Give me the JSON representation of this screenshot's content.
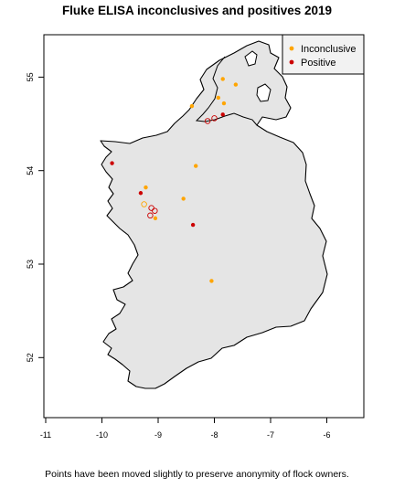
{
  "title": "Fluke ELISA inconclusives and positives 2019",
  "caption": "Points have been moved slightly to preserve anonymity of flock owners.",
  "map": {
    "land_color": "#e5e5e5",
    "border_color": "#000000",
    "x_ticks": [
      "-11",
      "-10",
      "-9",
      "-8",
      "-7",
      "-6"
    ],
    "y_ticks": [
      "52",
      "53",
      "54",
      "55"
    ]
  },
  "legend": {
    "position": "top-right",
    "items": [
      {
        "label": "Inconclusive",
        "color": "#ffa500"
      },
      {
        "label": "Positive",
        "color": "#cc0000"
      }
    ]
  },
  "chart_data": {
    "type": "scatter",
    "title": "Fluke ELISA inconclusives and positives 2019",
    "xlabel": "",
    "ylabel": "",
    "xlim": [
      -11.0,
      -5.5
    ],
    "ylim": [
      51.3,
      55.45
    ],
    "x_ticks": [
      -11,
      -10,
      -9,
      -8,
      -7,
      -6
    ],
    "y_ticks": [
      52,
      53,
      54,
      55
    ],
    "series": [
      {
        "name": "Inconclusive",
        "color": "#ffa500",
        "points": [
          {
            "x": -7.85,
            "y": 54.98,
            "filled": true
          },
          {
            "x": -7.62,
            "y": 54.92,
            "filled": true
          },
          {
            "x": -7.93,
            "y": 54.78,
            "filled": true
          },
          {
            "x": -8.4,
            "y": 54.69,
            "filled": true
          },
          {
            "x": -7.83,
            "y": 54.72,
            "filled": true
          },
          {
            "x": -8.33,
            "y": 54.05,
            "filled": true
          },
          {
            "x": -9.22,
            "y": 53.82,
            "filled": true
          },
          {
            "x": -8.55,
            "y": 53.7,
            "filled": true
          },
          {
            "x": -9.25,
            "y": 53.64,
            "filled": false
          },
          {
            "x": -9.05,
            "y": 53.49,
            "filled": true
          },
          {
            "x": -8.05,
            "y": 52.82,
            "filled": true
          }
        ]
      },
      {
        "name": "Positive",
        "color": "#cc0000",
        "points": [
          {
            "x": -8.12,
            "y": 54.53,
            "filled": false
          },
          {
            "x": -8.0,
            "y": 54.56,
            "filled": false
          },
          {
            "x": -7.85,
            "y": 54.6,
            "filled": true
          },
          {
            "x": -9.82,
            "y": 54.08,
            "filled": true
          },
          {
            "x": -9.31,
            "y": 53.76,
            "filled": true
          },
          {
            "x": -9.12,
            "y": 53.6,
            "filled": false
          },
          {
            "x": -9.06,
            "y": 53.57,
            "filled": false
          },
          {
            "x": -9.14,
            "y": 53.52,
            "filled": false
          },
          {
            "x": -8.38,
            "y": 53.42,
            "filled": true
          }
        ]
      }
    ]
  }
}
